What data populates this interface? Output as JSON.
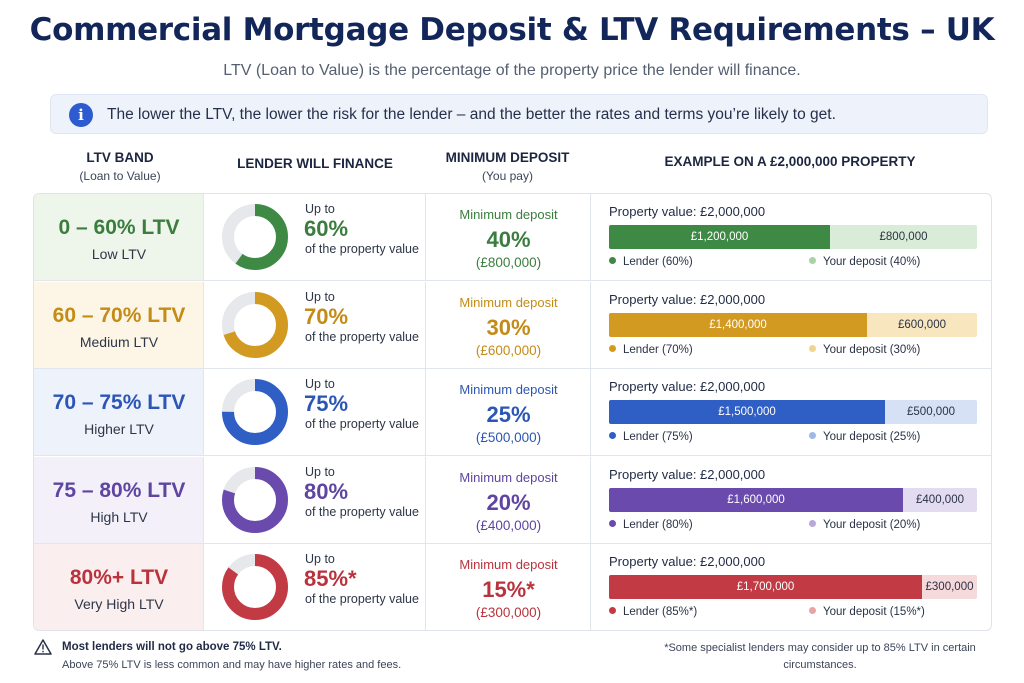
{
  "title": "Commercial Mortgage Deposit & LTV Requirements – UK",
  "subtitle": "LTV (Loan to Value) is the percentage of the property price the lender will finance.",
  "info": {
    "icon": "info-icon",
    "icon_glyph": "i",
    "text": "The lower the LTV, the lower the risk for the lender – and the better the rates and terms you’re likely to get."
  },
  "headers": {
    "band": "LTV BAND",
    "band_sub": "(Loan to Value)",
    "finance": "LENDER WILL FINANCE",
    "deposit": "MINIMUM DEPOSIT",
    "deposit_sub": "(You pay)",
    "example": "EXAMPLE ON A £2,000,000 PROPERTY"
  },
  "rows": [
    {
      "range": "0 – 60% LTV",
      "label": "Low LTV",
      "upto": "Up to",
      "pct": "60%",
      "of": "of the property value",
      "fraction": 0.6,
      "dep_label": "Minimum deposit",
      "dep_pct": "40%",
      "dep_amt": "(£800,000)",
      "prop": "Property value: £2,000,000",
      "lender_amt": "£1,200,000",
      "deposit_amt": "£800,000",
      "leg_lender": "Lender (60%)",
      "leg_deposit": "Your deposit (40%)",
      "color": "#3e8a45",
      "light": "#d9ecd8",
      "tint": "#eef6ec",
      "text_color": "#3b7d3f"
    },
    {
      "range": "60 – 70% LTV",
      "label": "Medium LTV",
      "upto": "Up to",
      "pct": "70%",
      "of": "of the property value",
      "fraction": 0.7,
      "dep_label": "Minimum deposit",
      "dep_pct": "30%",
      "dep_amt": "(£600,000)",
      "prop": "Property value: £2,000,000",
      "lender_amt": "£1,400,000",
      "deposit_amt": "£600,000",
      "leg_lender": "Lender (70%)",
      "leg_deposit": "Your deposit (30%)",
      "color": "#d39a22",
      "light": "#f8e6bf",
      "tint": "#fdf6e6",
      "text_color": "#c48b16"
    },
    {
      "range": "70 – 75% LTV",
      "label": "Higher LTV",
      "upto": "Up to",
      "pct": "75%",
      "of": "of the property value",
      "fraction": 0.75,
      "dep_label": "Minimum deposit",
      "dep_pct": "25%",
      "dep_amt": "(£500,000)",
      "prop": "Property value: £2,000,000",
      "lender_amt": "£1,500,000",
      "deposit_amt": "£500,000",
      "leg_lender": "Lender (75%)",
      "leg_deposit": "Your deposit (25%)",
      "color": "#2f5ec4",
      "light": "#d6e1f6",
      "tint": "#eef2fb",
      "text_color": "#2c56b6"
    },
    {
      "range": "75 – 80% LTV",
      "label": "High LTV",
      "upto": "Up to",
      "pct": "80%",
      "of": "of the property value",
      "fraction": 0.8,
      "dep_label": "Minimum deposit",
      "dep_pct": "20%",
      "dep_amt": "(£400,000)",
      "prop": "Property value: £2,000,000",
      "lender_amt": "£1,600,000",
      "deposit_amt": "£400,000",
      "leg_lender": "Lender (80%)",
      "leg_deposit": "Your deposit (20%)",
      "color": "#6b4aae",
      "light": "#e3dcf1",
      "tint": "#f3f0f9",
      "text_color": "#5f45a0"
    },
    {
      "range": "80%+ LTV",
      "label": "Very High LTV",
      "upto": "Up to",
      "pct": "85%*",
      "of": "of the property value",
      "fraction": 0.85,
      "dep_label": "Minimum deposit",
      "dep_pct": "15%*",
      "dep_amt": "(£300,000)",
      "prop": "Property value: £2,000,000",
      "lender_amt": "£1,700,000",
      "deposit_amt": "£300,000",
      "leg_lender": "Lender (85%*)",
      "leg_deposit": "Your deposit (15%*)",
      "color": "#c13a44",
      "light": "#f6d9da",
      "tint": "#fbeeee",
      "text_color": "#b9333d"
    }
  ],
  "footer": {
    "warn_icon": "warning-icon",
    "bold": "Most lenders will not go above 75% LTV.",
    "note": "Above 75% LTV is less common and may have higher rates and fees.",
    "right": "*Some specialist lenders may consider up to 85% LTV in certain circumstances."
  }
}
